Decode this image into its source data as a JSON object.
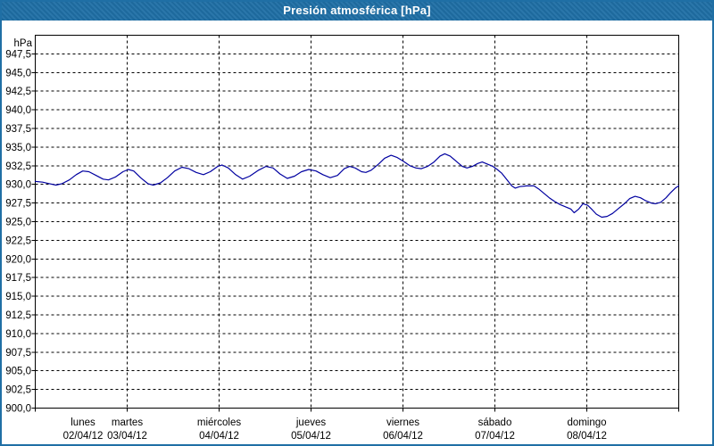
{
  "window": {
    "title": "Presión atmosférica [hPa]"
  },
  "colors": {
    "titlebar_background": "#1f6fa5",
    "titlebar_text": "#ffffff",
    "window_border": "#1f6fa5",
    "plot_border": "#000000",
    "grid": "#000000",
    "line": "#0000a0",
    "background": "#ffffff",
    "text": "#000000"
  },
  "chart_data": {
    "type": "line",
    "title": "Presión atmosférica [hPa]",
    "unit_label": "hPa",
    "ylim": [
      900,
      950
    ],
    "ytick_step": 2.5,
    "y_tick_labels": [
      "947,5",
      "945,0",
      "942,5",
      "940,0",
      "937,5",
      "935,0",
      "932,5",
      "930,0",
      "927,5",
      "925,0",
      "922,5",
      "920,0",
      "917,5",
      "915,0",
      "912,5",
      "910,0",
      "907,5",
      "905,0",
      "902,5",
      "900,0"
    ],
    "y_tick_values": [
      947.5,
      945.0,
      942.5,
      940.0,
      937.5,
      935.0,
      932.5,
      930.0,
      927.5,
      925.0,
      922.5,
      920.0,
      917.5,
      915.0,
      912.5,
      910.0,
      907.5,
      905.0,
      902.5,
      900.0
    ],
    "days": [
      {
        "name": "lunes",
        "date": "02/04/12"
      },
      {
        "name": "martes",
        "date": "03/04/12"
      },
      {
        "name": "miércoles",
        "date": "04/04/12"
      },
      {
        "name": "jueves",
        "date": "05/04/12"
      },
      {
        "name": "viernes",
        "date": "06/04/12"
      },
      {
        "name": "sábado",
        "date": "07/04/12"
      },
      {
        "name": "domingo",
        "date": "08/04/12"
      }
    ],
    "xlim_hours": [
      0,
      168
    ],
    "x_axis_description": "time from lunes 02/04/12 00:00 to domingo 08/04/12 24:00, vertical gridlines at day boundaries",
    "grid": "dashed black gridlines, horizontal every 2.5 hPa, vertical every 24 h",
    "legend": "none",
    "series": [
      {
        "name": "Presión atmosférica",
        "unit": "hPa",
        "color": "#0000a0",
        "points_hour_hpa": [
          [
            0,
            930.4
          ],
          [
            1.9,
            930.3
          ],
          [
            3.7,
            930.1
          ],
          [
            5.4,
            929.9
          ],
          [
            7,
            930.1
          ],
          [
            8.9,
            930.6
          ],
          [
            10.7,
            931.3
          ],
          [
            12.4,
            931.8
          ],
          [
            14,
            931.7
          ],
          [
            15.9,
            931.2
          ],
          [
            17.7,
            930.7
          ],
          [
            19.1,
            930.6
          ],
          [
            21,
            931.0
          ],
          [
            22.9,
            931.7
          ],
          [
            24.3,
            932.0
          ],
          [
            25.7,
            931.8
          ],
          [
            27.5,
            930.9
          ],
          [
            29.4,
            930.1
          ],
          [
            30.8,
            929.9
          ],
          [
            32.7,
            930.2
          ],
          [
            34.5,
            930.9
          ],
          [
            36.4,
            931.8
          ],
          [
            38.3,
            932.3
          ],
          [
            40.1,
            932.1
          ],
          [
            42,
            931.6
          ],
          [
            43.9,
            931.3
          ],
          [
            45.7,
            931.7
          ],
          [
            47.6,
            932.4
          ],
          [
            48.8,
            932.6
          ],
          [
            50.4,
            932.2
          ],
          [
            52.3,
            931.3
          ],
          [
            54.1,
            930.7
          ],
          [
            56,
            931.1
          ],
          [
            58.3,
            931.9
          ],
          [
            60.2,
            932.4
          ],
          [
            62.1,
            932.2
          ],
          [
            63.9,
            931.4
          ],
          [
            65.8,
            930.8
          ],
          [
            67.7,
            931.1
          ],
          [
            69.5,
            931.7
          ],
          [
            71.4,
            932.0
          ],
          [
            73.3,
            931.8
          ],
          [
            75.1,
            931.3
          ],
          [
            77,
            930.9
          ],
          [
            78.9,
            931.2
          ],
          [
            80.7,
            932.1
          ],
          [
            82.1,
            932.4
          ],
          [
            83.5,
            932.2
          ],
          [
            85.2,
            931.7
          ],
          [
            86.3,
            931.6
          ],
          [
            87.7,
            931.9
          ],
          [
            89.6,
            932.7
          ],
          [
            91.2,
            933.5
          ],
          [
            92.9,
            933.9
          ],
          [
            94.5,
            933.6
          ],
          [
            96.1,
            933.1
          ],
          [
            97.8,
            932.5
          ],
          [
            99.4,
            932.2
          ],
          [
            100.8,
            932.1
          ],
          [
            102.4,
            932.4
          ],
          [
            104.1,
            933.0
          ],
          [
            105.7,
            933.8
          ],
          [
            106.9,
            934.1
          ],
          [
            108.3,
            933.8
          ],
          [
            109.9,
            933.1
          ],
          [
            111.5,
            932.4
          ],
          [
            112.7,
            932.2
          ],
          [
            114.1,
            932.4
          ],
          [
            115.5,
            932.8
          ],
          [
            116.7,
            933.0
          ],
          [
            118.1,
            932.7
          ],
          [
            119.5,
            932.4
          ],
          [
            120.6,
            932.0
          ],
          [
            121.8,
            931.5
          ],
          [
            123.2,
            930.6
          ],
          [
            124.4,
            929.8
          ],
          [
            125.3,
            929.5
          ],
          [
            126.5,
            929.7
          ],
          [
            128.3,
            929.8
          ],
          [
            130.2,
            929.8
          ],
          [
            131.4,
            929.4
          ],
          [
            132.8,
            928.8
          ],
          [
            134.2,
            928.2
          ],
          [
            135.6,
            927.7
          ],
          [
            137,
            927.3
          ],
          [
            138.4,
            927.0
          ],
          [
            139.8,
            926.7
          ],
          [
            140.7,
            926.2
          ],
          [
            141.9,
            926.7
          ],
          [
            143,
            927.4
          ],
          [
            144.2,
            927.2
          ],
          [
            145.4,
            926.6
          ],
          [
            146.5,
            926.0
          ],
          [
            147.9,
            925.6
          ],
          [
            149.3,
            925.7
          ],
          [
            150.7,
            926.1
          ],
          [
            152.1,
            926.7
          ],
          [
            153.8,
            927.4
          ],
          [
            155.2,
            928.1
          ],
          [
            156.6,
            928.4
          ],
          [
            158,
            928.2
          ],
          [
            159.4,
            927.8
          ],
          [
            160.8,
            927.5
          ],
          [
            161.9,
            927.4
          ],
          [
            163.3,
            927.6
          ],
          [
            164.7,
            928.2
          ],
          [
            165.9,
            928.9
          ],
          [
            167.1,
            929.5
          ],
          [
            168,
            929.8
          ]
        ]
      }
    ]
  }
}
